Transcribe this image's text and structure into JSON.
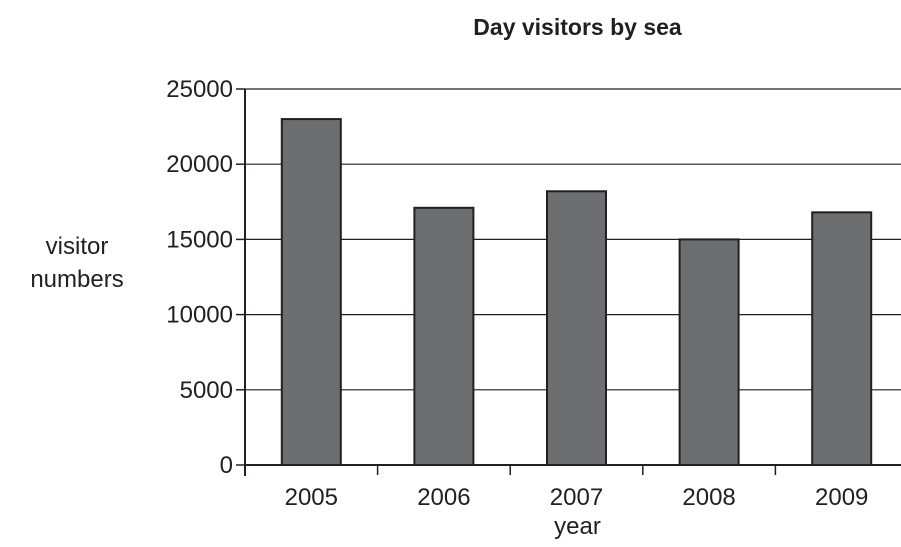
{
  "chart_data": {
    "type": "bar",
    "title": "Day visitors by sea",
    "xlabel": "year",
    "ylabel_lines": [
      "visitor",
      "numbers"
    ],
    "categories": [
      "2005",
      "2006",
      "2007",
      "2008",
      "2009"
    ],
    "values": [
      23000,
      17100,
      18200,
      15000,
      16800
    ],
    "ylim": [
      0,
      25000
    ],
    "yticks": [
      0,
      5000,
      10000,
      15000,
      20000,
      25000
    ],
    "grid": true,
    "bar_color": "#6d6e70",
    "line_color": "#231f20"
  }
}
